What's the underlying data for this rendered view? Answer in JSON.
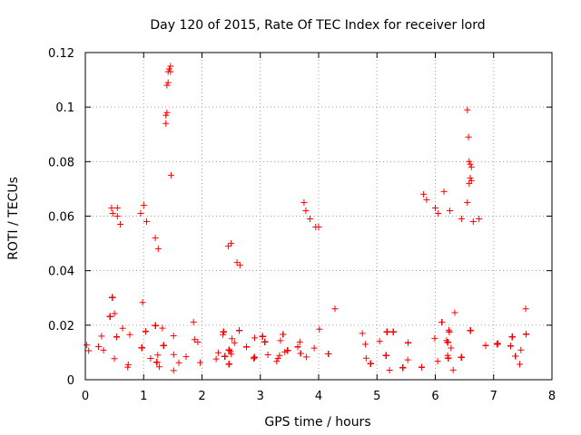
{
  "chart_data": {
    "type": "scatter",
    "title": "Day 120 of 2015, Rate Of TEC Index for receiver lord",
    "xlabel": "GPS time / hours",
    "ylabel": "ROTI / TECUs",
    "xlim": [
      0,
      8
    ],
    "ylim": [
      0,
      0.12
    ],
    "x_ticks": [
      "0",
      "1",
      "2",
      "3",
      "4",
      "5",
      "6",
      "7",
      "8"
    ],
    "y_ticks": [
      "0",
      "0.02",
      "0.04",
      "0.06",
      "0.08",
      "0.1",
      "0.12"
    ],
    "grid": true,
    "marker": "+",
    "color": "#ff0000",
    "series": [
      {
        "name": "ROTI",
        "points": [
          [
            1.38,
            0.094
          ],
          [
            1.38,
            0.097
          ],
          [
            1.4,
            0.098
          ],
          [
            1.4,
            0.108
          ],
          [
            1.42,
            0.109
          ],
          [
            1.42,
            0.113
          ],
          [
            1.44,
            0.114
          ],
          [
            1.46,
            0.115
          ],
          [
            1.46,
            0.113
          ],
          [
            1.47,
            0.075
          ],
          [
            6.55,
            0.099
          ],
          [
            6.57,
            0.089
          ],
          [
            6.58,
            0.08
          ],
          [
            6.6,
            0.079
          ],
          [
            6.62,
            0.078
          ],
          [
            6.6,
            0.074
          ],
          [
            6.58,
            0.072
          ],
          [
            6.62,
            0.073
          ],
          [
            0.45,
            0.063
          ],
          [
            0.47,
            0.061
          ],
          [
            0.55,
            0.06
          ],
          [
            0.55,
            0.063
          ],
          [
            0.6,
            0.057
          ],
          [
            0.95,
            0.061
          ],
          [
            1.0,
            0.064
          ],
          [
            1.05,
            0.058
          ],
          [
            1.2,
            0.052
          ],
          [
            1.25,
            0.048
          ],
          [
            3.75,
            0.065
          ],
          [
            3.78,
            0.062
          ],
          [
            3.85,
            0.059
          ],
          [
            3.95,
            0.056
          ],
          [
            4.0,
            0.056
          ],
          [
            2.45,
            0.049
          ],
          [
            2.5,
            0.05
          ],
          [
            2.6,
            0.043
          ],
          [
            2.65,
            0.042
          ],
          [
            5.8,
            0.068
          ],
          [
            5.85,
            0.066
          ],
          [
            6.0,
            0.063
          ],
          [
            6.05,
            0.061
          ],
          [
            6.15,
            0.069
          ],
          [
            6.25,
            0.062
          ],
          [
            6.45,
            0.059
          ],
          [
            6.55,
            0.065
          ],
          [
            6.65,
            0.058
          ],
          [
            6.75,
            0.059
          ],
          [
            4.28,
            0.026
          ],
          [
            4.75,
            0.017
          ],
          [
            7.55,
            0.026
          ]
        ]
      }
    ],
    "gap": [
      4.35,
      4.7
    ]
  }
}
